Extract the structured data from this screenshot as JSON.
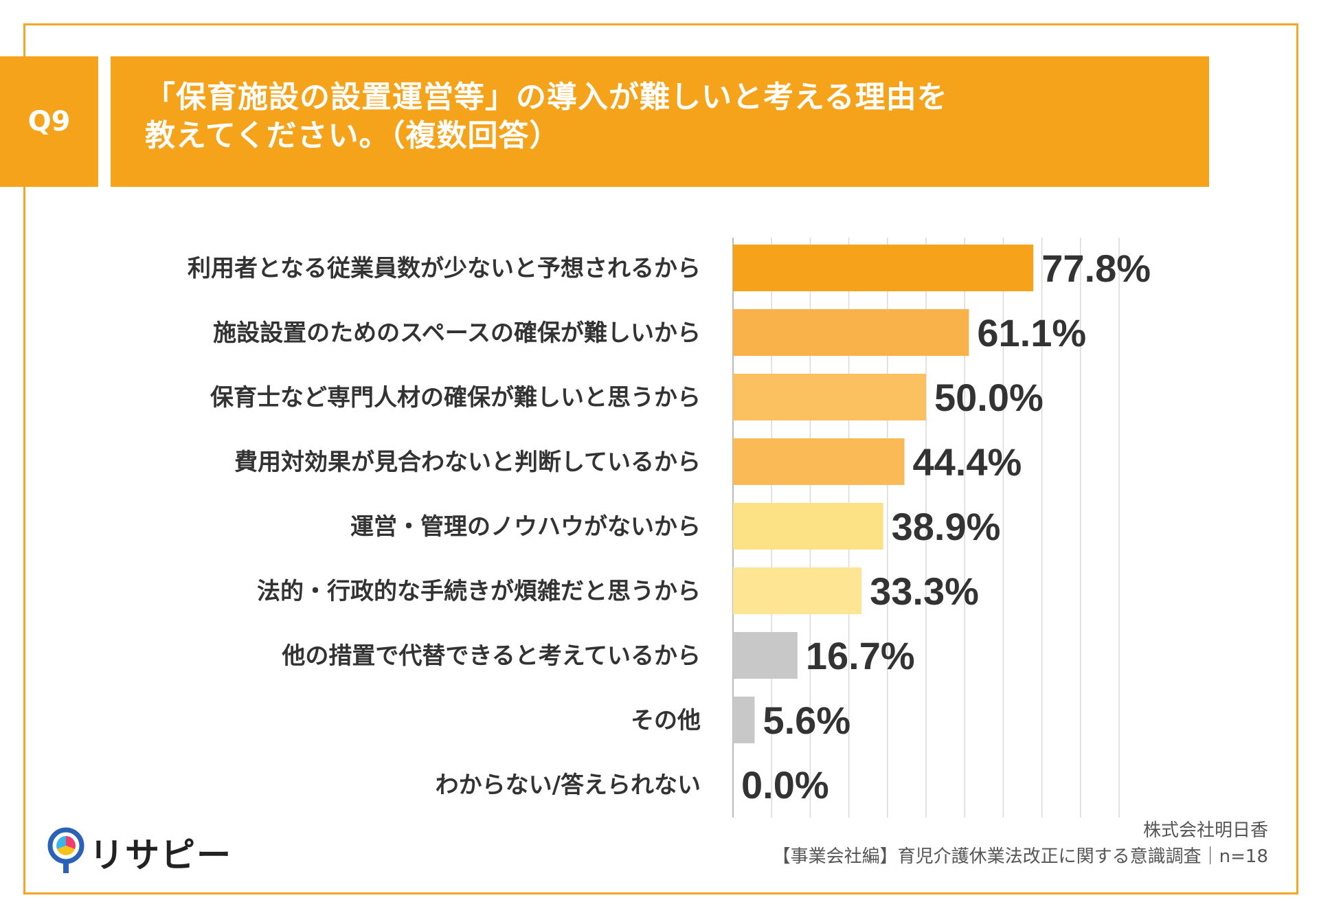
{
  "header": {
    "question_no": "Q9",
    "title_line1": "「保育施設の設置運営等」の導入が難しいと考える理由を",
    "title_line2": "教えてください。（複数回答）"
  },
  "colors": {
    "accent": "#f5a31a",
    "bar_colors": [
      "#f7a21b",
      "#f9b24a",
      "#fbc060",
      "#fabb56",
      "#fde185",
      "#fde594",
      "#c8c8c8",
      "#c8c8c8",
      "#c8c8c8"
    ]
  },
  "chart_data": {
    "type": "bar",
    "orientation": "horizontal",
    "categories": [
      "利用者となる従業員数が少ないと予想されるから",
      "施設設置のためのスペースの確保が難しいから",
      "保育士など専門人材の確保が難しいと思うから",
      "費用対効果が見合わないと判断しているから",
      "運営・管理のノウハウがないから",
      "法的・行政的な手続きが煩雑だと思うから",
      "他の措置で代替できると考えているから",
      "その他",
      "わからない/答えられない"
    ],
    "values": [
      77.8,
      61.1,
      50.0,
      44.4,
      38.9,
      33.3,
      16.7,
      5.6,
      0.0
    ],
    "value_labels": [
      "77.8%",
      "61.1%",
      "50.0%",
      "44.4%",
      "38.9%",
      "33.3%",
      "16.7%",
      "5.6%",
      "0.0%"
    ],
    "xlim": [
      0,
      100
    ],
    "grid": true
  },
  "logo": {
    "text": "リサピー"
  },
  "footer": {
    "company": "株式会社明日香",
    "survey": "【事業会社編】育児介護休業法改正に関する意識調査｜n=18"
  }
}
